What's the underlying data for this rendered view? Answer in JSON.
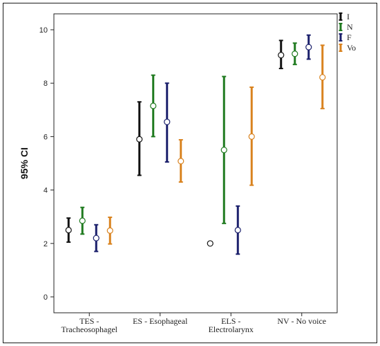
{
  "chart_data": {
    "type": "errorbar",
    "ylabel": "95% CI",
    "xlabel": "",
    "ylim": [
      0,
      10
    ],
    "yticks": [
      0,
      2,
      4,
      6,
      8,
      10
    ],
    "grid": false,
    "legend_position": "top-right",
    "categories": [
      [
        "TES -",
        "Tracheosophagel"
      ],
      [
        "ES - Esophageal"
      ],
      [
        "ELS -",
        "Electrolarynx"
      ],
      [
        "NV - No voice"
      ]
    ],
    "series": [
      {
        "name": "I",
        "color": "#111111",
        "mean": [
          2.5,
          5.9,
          2.0,
          9.05
        ],
        "lower": [
          2.05,
          4.55,
          1.96,
          8.55
        ],
        "upper": [
          2.95,
          7.3,
          2.04,
          9.6
        ]
      },
      {
        "name": "N",
        "color": "#1f7a1f",
        "mean": [
          2.85,
          7.15,
          5.5,
          9.1
        ],
        "lower": [
          2.35,
          6.0,
          2.75,
          8.7
        ],
        "upper": [
          3.35,
          8.3,
          8.25,
          9.5
        ]
      },
      {
        "name": "F",
        "color": "#1a1f6b",
        "mean": [
          2.2,
          6.55,
          2.5,
          9.35
        ],
        "lower": [
          1.7,
          5.05,
          1.6,
          8.9
        ],
        "upper": [
          2.7,
          8.0,
          3.4,
          9.8
        ]
      },
      {
        "name": "Vo",
        "color": "#d9821e",
        "mean": [
          2.48,
          5.08,
          6.0,
          8.22
        ],
        "lower": [
          1.98,
          4.3,
          4.18,
          7.05
        ],
        "upper": [
          2.98,
          5.88,
          7.85,
          9.42
        ]
      }
    ]
  }
}
